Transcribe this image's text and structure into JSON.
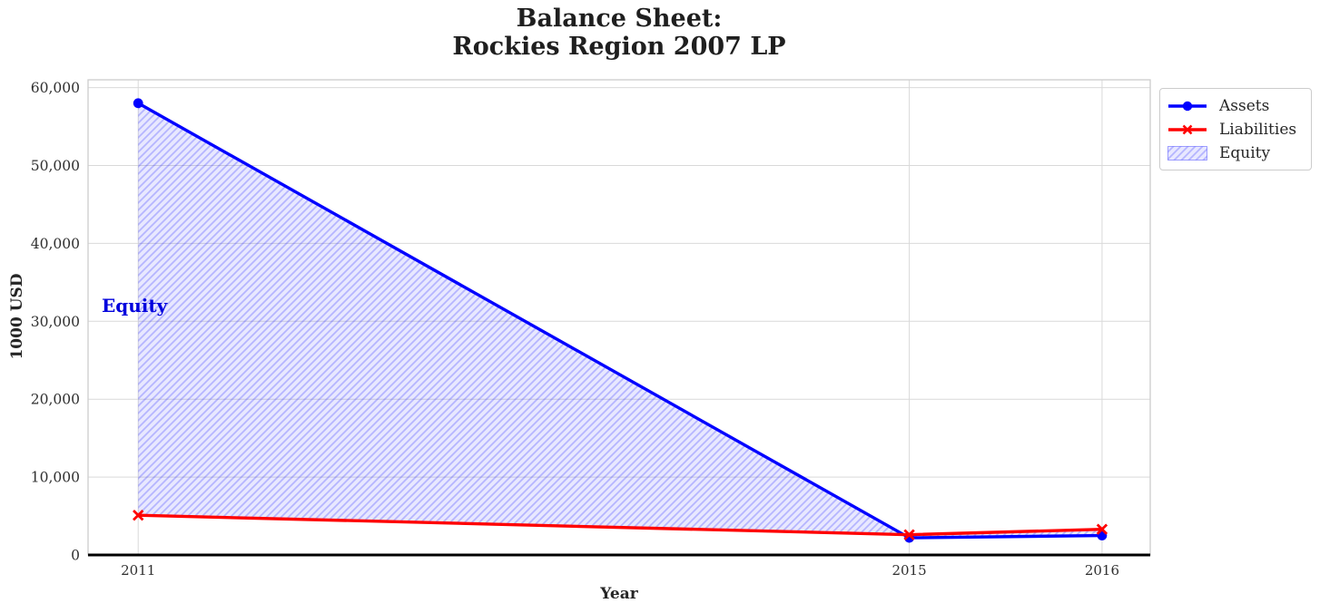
{
  "title_lines": [
    "Balance Sheet:",
    "Rockies Region 2007 LP"
  ],
  "chart_data": {
    "type": "line",
    "title": "Balance Sheet: Rockies Region 2007 LP",
    "xlabel": "Year",
    "ylabel": "1000 USD",
    "x": [
      2011,
      2015,
      2016
    ],
    "series": [
      {
        "name": "Assets",
        "values": [
          58000,
          2200,
          2500
        ],
        "color": "#0000ff",
        "marker": "circle"
      },
      {
        "name": "Liabilities",
        "values": [
          5100,
          2600,
          3300
        ],
        "color": "#ff0000",
        "marker": "x"
      }
    ],
    "fill_between": {
      "name": "Equity",
      "between": [
        "Assets",
        "Liabilities"
      ],
      "color": "#0000ff",
      "hatch": "/"
    },
    "annotation": {
      "text": "Equity",
      "x": 2010.82,
      "y": 31800
    },
    "xlim": [
      2010.74,
      2016.25
    ],
    "ylim": [
      0,
      61000
    ],
    "xticks": [
      2011,
      2015,
      2016
    ],
    "xticklabels": [
      "2011",
      "2015",
      "2016"
    ],
    "yticks": [
      0,
      10000,
      20000,
      30000,
      40000,
      50000,
      60000
    ],
    "yticklabels": [
      "0",
      "10,000",
      "20,000",
      "30,000",
      "40,000",
      "50,000",
      "60,000"
    ],
    "grid": true,
    "legend": {
      "position": "upper-right-outside",
      "entries": [
        "Assets",
        "Liabilities",
        "Equity"
      ]
    }
  },
  "colors": {
    "grid": "#d9d9d9",
    "spine": "#cccccc",
    "axis_line": "#000000",
    "tick_text": "#303030",
    "equity_face_alpha": "rgba(0,0,255,0.09)",
    "equity_hatch_alpha": "rgba(0,0,255,0.22)"
  }
}
